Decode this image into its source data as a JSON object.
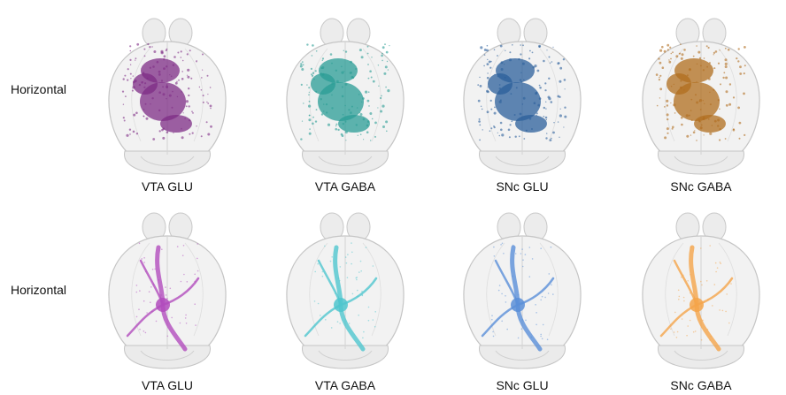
{
  "rows": [
    {
      "label": "Horizontal",
      "panels": [
        {
          "caption": "VTA GLU",
          "color": "#7e2c86",
          "style": "dense"
        },
        {
          "caption": "VTA GABA",
          "color": "#2a9c95",
          "style": "dense"
        },
        {
          "caption": "SNc GLU",
          "color": "#2b5f9b",
          "style": "dense"
        },
        {
          "caption": "SNc GABA",
          "color": "#b06d1e",
          "style": "dense"
        }
      ]
    },
    {
      "label": "Horizontal",
      "panels": [
        {
          "caption": "VTA GLU",
          "color": "#b24cbd",
          "style": "tracts"
        },
        {
          "caption": "VTA GABA",
          "color": "#4fc6ce",
          "style": "tracts"
        },
        {
          "caption": "SNc GLU",
          "color": "#5a8fd8",
          "style": "tracts"
        },
        {
          "caption": "SNc GABA",
          "color": "#f4a44a",
          "style": "tracts"
        }
      ]
    }
  ]
}
